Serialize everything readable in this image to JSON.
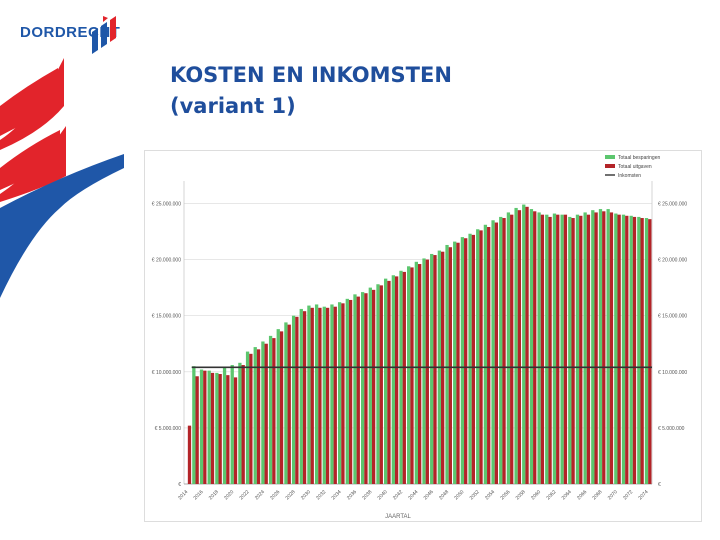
{
  "header": {
    "logo_text": "DORDRECHT",
    "title_line1": "KOSTEN EN INKOMSTEN",
    "title_line2": "(variant 1)"
  },
  "colors": {
    "brand_blue": "#1f57a8",
    "brand_red": "#e2242b",
    "title_blue": "#1f4e9c",
    "besparing_green": "#5cc66e",
    "uitgaven_red": "#b32428",
    "inkomsten_line": "#333333"
  },
  "chart_data": {
    "type": "bar",
    "title": "",
    "xlabel": "JAARTAL",
    "ylabel": "",
    "ylim": [
      0,
      27000000
    ],
    "grid": true,
    "legend_position": "top-right",
    "legend": [
      "Totaal besparingen",
      "Totaal uitgaven",
      "Inkomsten"
    ],
    "y_left_ticks": [
      {
        "value": 0,
        "label": "€"
      },
      {
        "value": 5000000,
        "label": "€ 5.000.000"
      },
      {
        "value": 10000000,
        "label": "€ 10.000.000"
      },
      {
        "value": 15000000,
        "label": "€ 15.000.000"
      },
      {
        "value": 20000000,
        "label": "€ 20.000.000"
      },
      {
        "value": 25000000,
        "label": "€ 25.000.000"
      }
    ],
    "y_right_ticks": [
      {
        "value": 0,
        "label": "€"
      },
      {
        "value": 5000000,
        "label": "€ 5.000.000"
      },
      {
        "value": 10000000,
        "label": "€ 10.000.000"
      },
      {
        "value": 15000000,
        "label": "€ 15.000.000"
      },
      {
        "value": 20000000,
        "label": "€ 20.000.000"
      },
      {
        "value": 25000000,
        "label": "€ 25.000.000"
      }
    ],
    "x_tick_labels": [
      "2014",
      "2016",
      "2018",
      "2020",
      "2022",
      "2024",
      "2026",
      "2028",
      "2030",
      "2032",
      "2034",
      "2036",
      "2038",
      "2040",
      "2042",
      "2044",
      "2046",
      "2048",
      "2050",
      "2052",
      "2054",
      "2056",
      "2058",
      "2060",
      "2062",
      "2064",
      "2066",
      "2068",
      "2070",
      "2072",
      "2074"
    ],
    "categories": [
      "2014",
      "2015",
      "2016",
      "2017",
      "2018",
      "2019",
      "2020",
      "2021",
      "2022",
      "2023",
      "2024",
      "2025",
      "2026",
      "2027",
      "2028",
      "2029",
      "2030",
      "2031",
      "2032",
      "2033",
      "2034",
      "2035",
      "2036",
      "2037",
      "2038",
      "2039",
      "2040",
      "2041",
      "2042",
      "2043",
      "2044",
      "2045",
      "2046",
      "2047",
      "2048",
      "2049",
      "2050",
      "2051",
      "2052",
      "2053",
      "2054",
      "2055",
      "2056",
      "2057",
      "2058",
      "2059",
      "2060",
      "2061",
      "2062",
      "2063",
      "2064",
      "2065",
      "2066",
      "2067",
      "2068",
      "2069",
      "2070",
      "2071",
      "2072",
      "2073",
      "2074"
    ],
    "series": [
      {
        "name": "Totaal besparingen",
        "values": [
          0,
          10500000,
          10200000,
          10100000,
          9900000,
          10400000,
          10600000,
          10800000,
          11800000,
          12200000,
          12700000,
          13200000,
          13800000,
          14400000,
          15000000,
          15600000,
          15900000,
          16000000,
          15800000,
          16000000,
          16200000,
          16500000,
          16900000,
          17100000,
          17500000,
          17800000,
          18300000,
          18600000,
          19000000,
          19400000,
          19800000,
          20100000,
          20500000,
          20800000,
          21300000,
          21600000,
          22000000,
          22300000,
          22700000,
          23100000,
          23500000,
          23800000,
          24200000,
          24600000,
          24900000,
          24500000,
          24200000,
          24000000,
          24100000,
          24000000,
          23800000,
          24000000,
          24200000,
          24400000,
          24500000,
          24500000,
          24100000,
          24000000,
          23900000,
          23800000,
          23700000
        ]
      },
      {
        "name": "Totaal uitgaven",
        "values": [
          5200000,
          9600000,
          10100000,
          9900000,
          9800000,
          9700000,
          9500000,
          10600000,
          11600000,
          12000000,
          12500000,
          13000000,
          13600000,
          14200000,
          14900000,
          15400000,
          15700000,
          15700000,
          15700000,
          15800000,
          16100000,
          16400000,
          16700000,
          17000000,
          17300000,
          17700000,
          18100000,
          18500000,
          18900000,
          19300000,
          19600000,
          20000000,
          20400000,
          20700000,
          21100000,
          21500000,
          21900000,
          22200000,
          22600000,
          22900000,
          23300000,
          23700000,
          24000000,
          24400000,
          24700000,
          24300000,
          24000000,
          23800000,
          24000000,
          24000000,
          23700000,
          23900000,
          24000000,
          24200000,
          24300000,
          24200000,
          24000000,
          23900000,
          23800000,
          23700000,
          23600000
        ]
      },
      {
        "name": "Inkomsten",
        "values": [
          10400000,
          10400000,
          10400000,
          10400000,
          10400000,
          10400000,
          10400000,
          10400000,
          10400000,
          10400000,
          10400000,
          10400000,
          10400000,
          10400000,
          10400000,
          10400000,
          10400000,
          10400000,
          10400000,
          10400000,
          10400000,
          10400000,
          10400000,
          10400000,
          10400000,
          10400000,
          10400000,
          10400000,
          10400000,
          10400000,
          10400000,
          10400000,
          10400000,
          10400000,
          10400000,
          10400000,
          10400000,
          10400000,
          10400000,
          10400000,
          10400000,
          10400000,
          10400000,
          10400000,
          10400000,
          10400000,
          10400000,
          10400000,
          10400000,
          10400000,
          10400000,
          10400000,
          10400000,
          10400000,
          10400000,
          10400000,
          10400000,
          10400000,
          10400000,
          10400000,
          10400000
        ]
      }
    ]
  }
}
